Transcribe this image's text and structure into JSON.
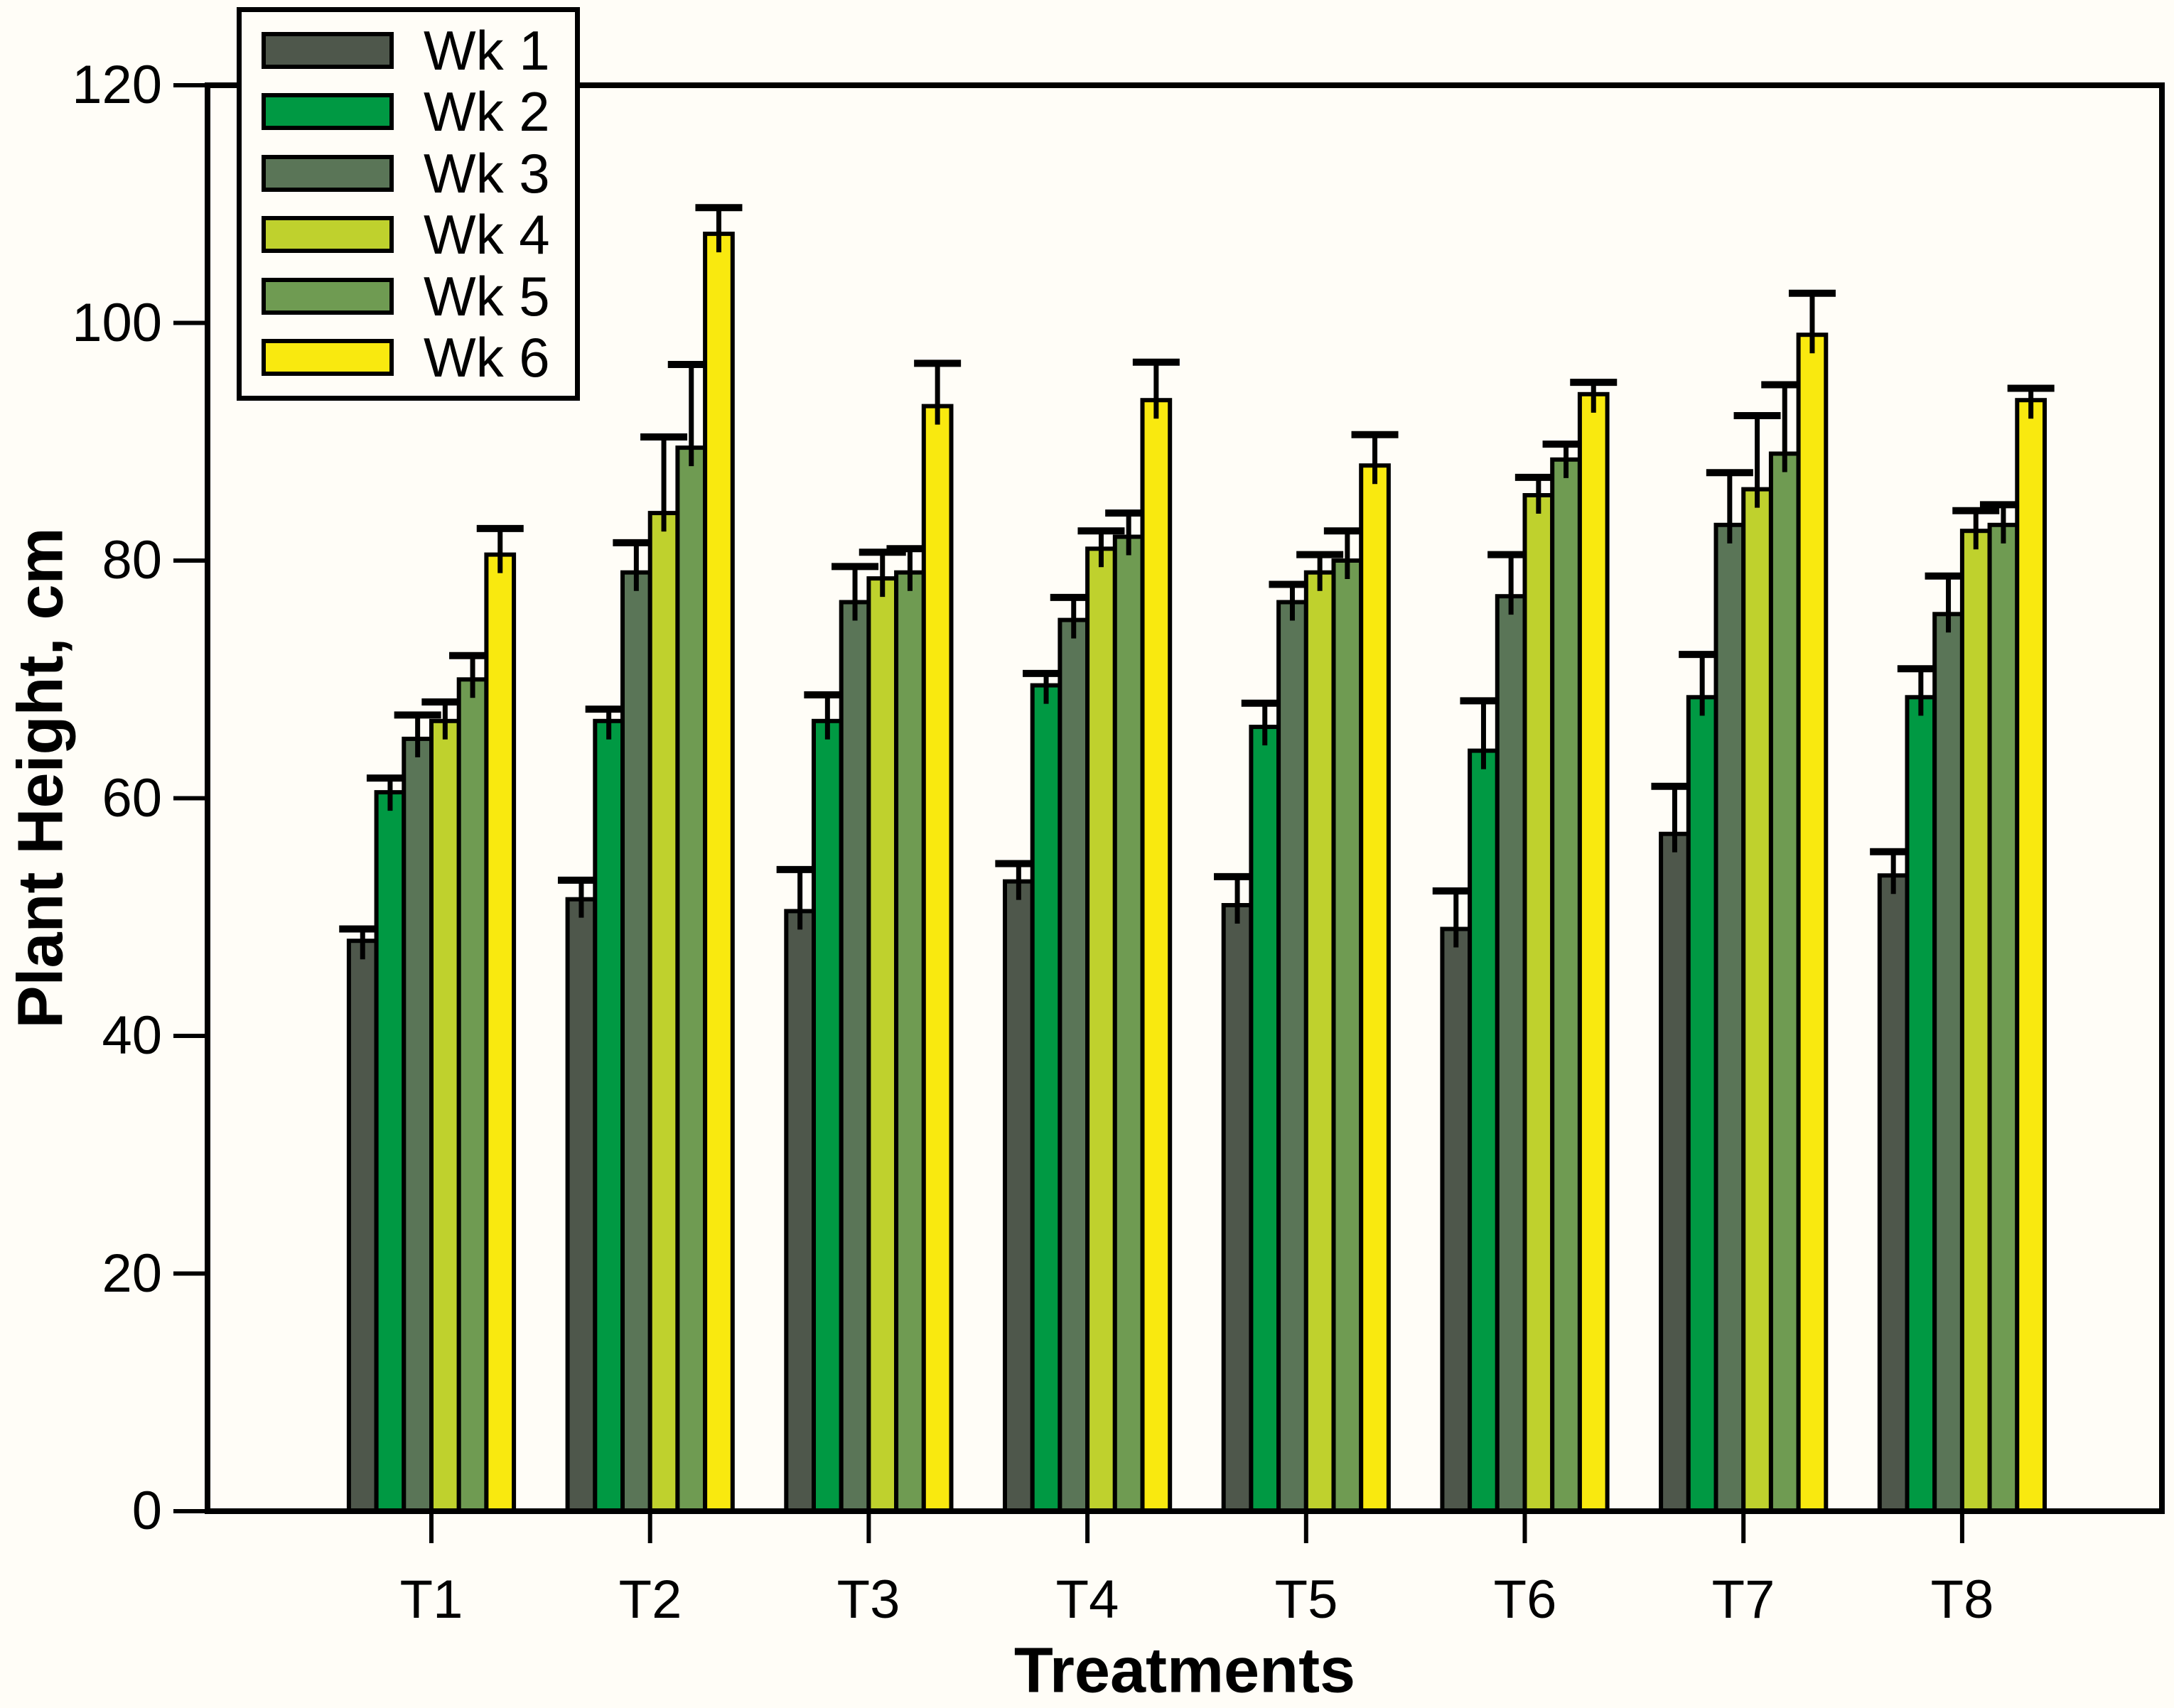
{
  "chart_data": {
    "type": "bar",
    "title": "",
    "xlabel": "Treatments",
    "ylabel": "Plant Height, cm",
    "categories": [
      "T1",
      "T2",
      "T3",
      "T4",
      "T5",
      "T6",
      "T7",
      "T8"
    ],
    "y_ticks": [
      0,
      20,
      40,
      60,
      80,
      100,
      120
    ],
    "ylim": [
      0,
      120
    ],
    "grid": false,
    "legend_position": "top-left",
    "error_bars": "upper",
    "series": [
      {
        "name": "Wk 1",
        "color": "#4e574b",
        "values": [
          48,
          51.5,
          50.5,
          53,
          51,
          49,
          57,
          53.5
        ],
        "errors": [
          1.0,
          1.6,
          3.5,
          1.5,
          2.4,
          3.2,
          4.0,
          2.0
        ]
      },
      {
        "name": "Wk 2",
        "color": "#009943",
        "values": [
          60.5,
          66.5,
          66.5,
          69.5,
          66,
          64,
          68.5,
          68.5
        ],
        "errors": [
          1.2,
          1.0,
          2.2,
          1.0,
          2.0,
          4.2,
          3.6,
          2.4
        ]
      },
      {
        "name": "Wk 3",
        "color": "#5a7557",
        "values": [
          65,
          79,
          76.5,
          75,
          76.5,
          77,
          83,
          75.5
        ],
        "errors": [
          2.0,
          2.5,
          3.0,
          1.9,
          1.5,
          3.5,
          4.4,
          3.2
        ]
      },
      {
        "name": "Wk 4",
        "color": "#bfd12d",
        "values": [
          66.5,
          84,
          78.5,
          81,
          79,
          85.5,
          86,
          82.5
        ],
        "errors": [
          1.6,
          6.4,
          2.2,
          1.5,
          1.5,
          1.5,
          6.2,
          1.7
        ]
      },
      {
        "name": "Wk 5",
        "color": "#6f9b52",
        "values": [
          70,
          89.5,
          79,
          82,
          80,
          88.5,
          89,
          83
        ],
        "errors": [
          2.0,
          7.0,
          2.0,
          2.0,
          2.5,
          1.3,
          5.8,
          1.7
        ]
      },
      {
        "name": "Wk 6",
        "color": "#f9e90f",
        "values": [
          80.5,
          107.5,
          93,
          93.5,
          88,
          94,
          99,
          93.5
        ],
        "errors": [
          2.2,
          2.2,
          3.6,
          3.2,
          2.6,
          1.0,
          3.5,
          1.0
        ]
      }
    ]
  }
}
